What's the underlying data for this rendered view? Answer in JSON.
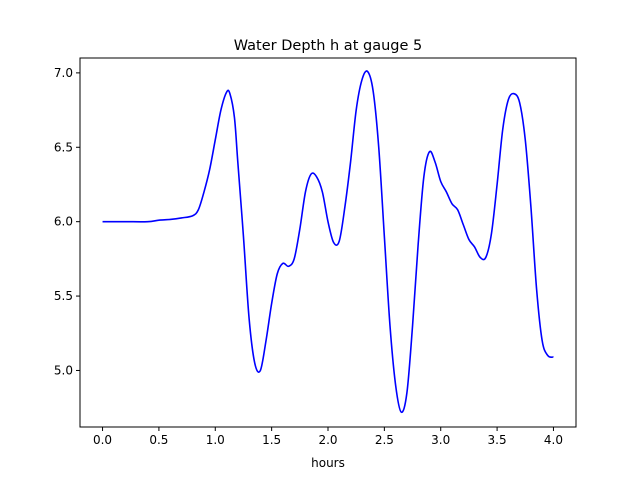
{
  "chart_data": {
    "type": "line",
    "title": "Water Depth h at gauge 5",
    "xlabel": "hours",
    "ylabel": "",
    "xlim": [
      -0.2,
      4.2
    ],
    "ylim": [
      4.62,
      7.1
    ],
    "xticks": [
      0.0,
      0.5,
      1.0,
      1.5,
      2.0,
      2.5,
      3.0,
      3.5,
      4.0
    ],
    "xtick_labels": [
      "0.0",
      "0.5",
      "1.0",
      "1.5",
      "2.0",
      "2.5",
      "3.0",
      "3.5",
      "4.0"
    ],
    "yticks": [
      5.0,
      5.5,
      6.0,
      6.5,
      7.0
    ],
    "ytick_labels": [
      "5.0",
      "5.5",
      "6.0",
      "6.5",
      "7.0"
    ],
    "grid": false,
    "legend": "none",
    "series": [
      {
        "color": "#0000ff",
        "x": [
          0.0,
          0.2,
          0.4,
          0.5,
          0.6,
          0.7,
          0.8,
          0.85,
          0.9,
          0.95,
          1.0,
          1.05,
          1.1,
          1.13,
          1.17,
          1.2,
          1.25,
          1.3,
          1.35,
          1.4,
          1.45,
          1.5,
          1.55,
          1.6,
          1.65,
          1.7,
          1.75,
          1.8,
          1.85,
          1.9,
          1.95,
          2.0,
          2.05,
          2.1,
          2.15,
          2.2,
          2.25,
          2.3,
          2.35,
          2.4,
          2.45,
          2.5,
          2.55,
          2.6,
          2.65,
          2.7,
          2.75,
          2.8,
          2.85,
          2.9,
          2.95,
          3.0,
          3.05,
          3.1,
          3.15,
          3.2,
          3.25,
          3.3,
          3.35,
          3.4,
          3.45,
          3.5,
          3.55,
          3.6,
          3.65,
          3.7,
          3.75,
          3.8,
          3.85,
          3.9,
          3.95,
          4.0
        ],
        "y": [
          6.0,
          6.0,
          6.0,
          6.01,
          6.015,
          6.025,
          6.04,
          6.08,
          6.2,
          6.35,
          6.55,
          6.75,
          6.87,
          6.86,
          6.7,
          6.4,
          5.9,
          5.35,
          5.05,
          5.0,
          5.2,
          5.45,
          5.65,
          5.72,
          5.7,
          5.75,
          5.95,
          6.2,
          6.32,
          6.3,
          6.2,
          6.0,
          5.86,
          5.87,
          6.1,
          6.4,
          6.75,
          6.95,
          7.01,
          6.88,
          6.5,
          5.9,
          5.3,
          4.9,
          4.72,
          4.85,
          5.3,
          5.85,
          6.3,
          6.47,
          6.4,
          6.27,
          6.2,
          6.12,
          6.08,
          5.98,
          5.88,
          5.83,
          5.76,
          5.76,
          5.92,
          6.25,
          6.62,
          6.82,
          6.86,
          6.8,
          6.55,
          6.1,
          5.55,
          5.2,
          5.1,
          5.09
        ]
      }
    ]
  }
}
